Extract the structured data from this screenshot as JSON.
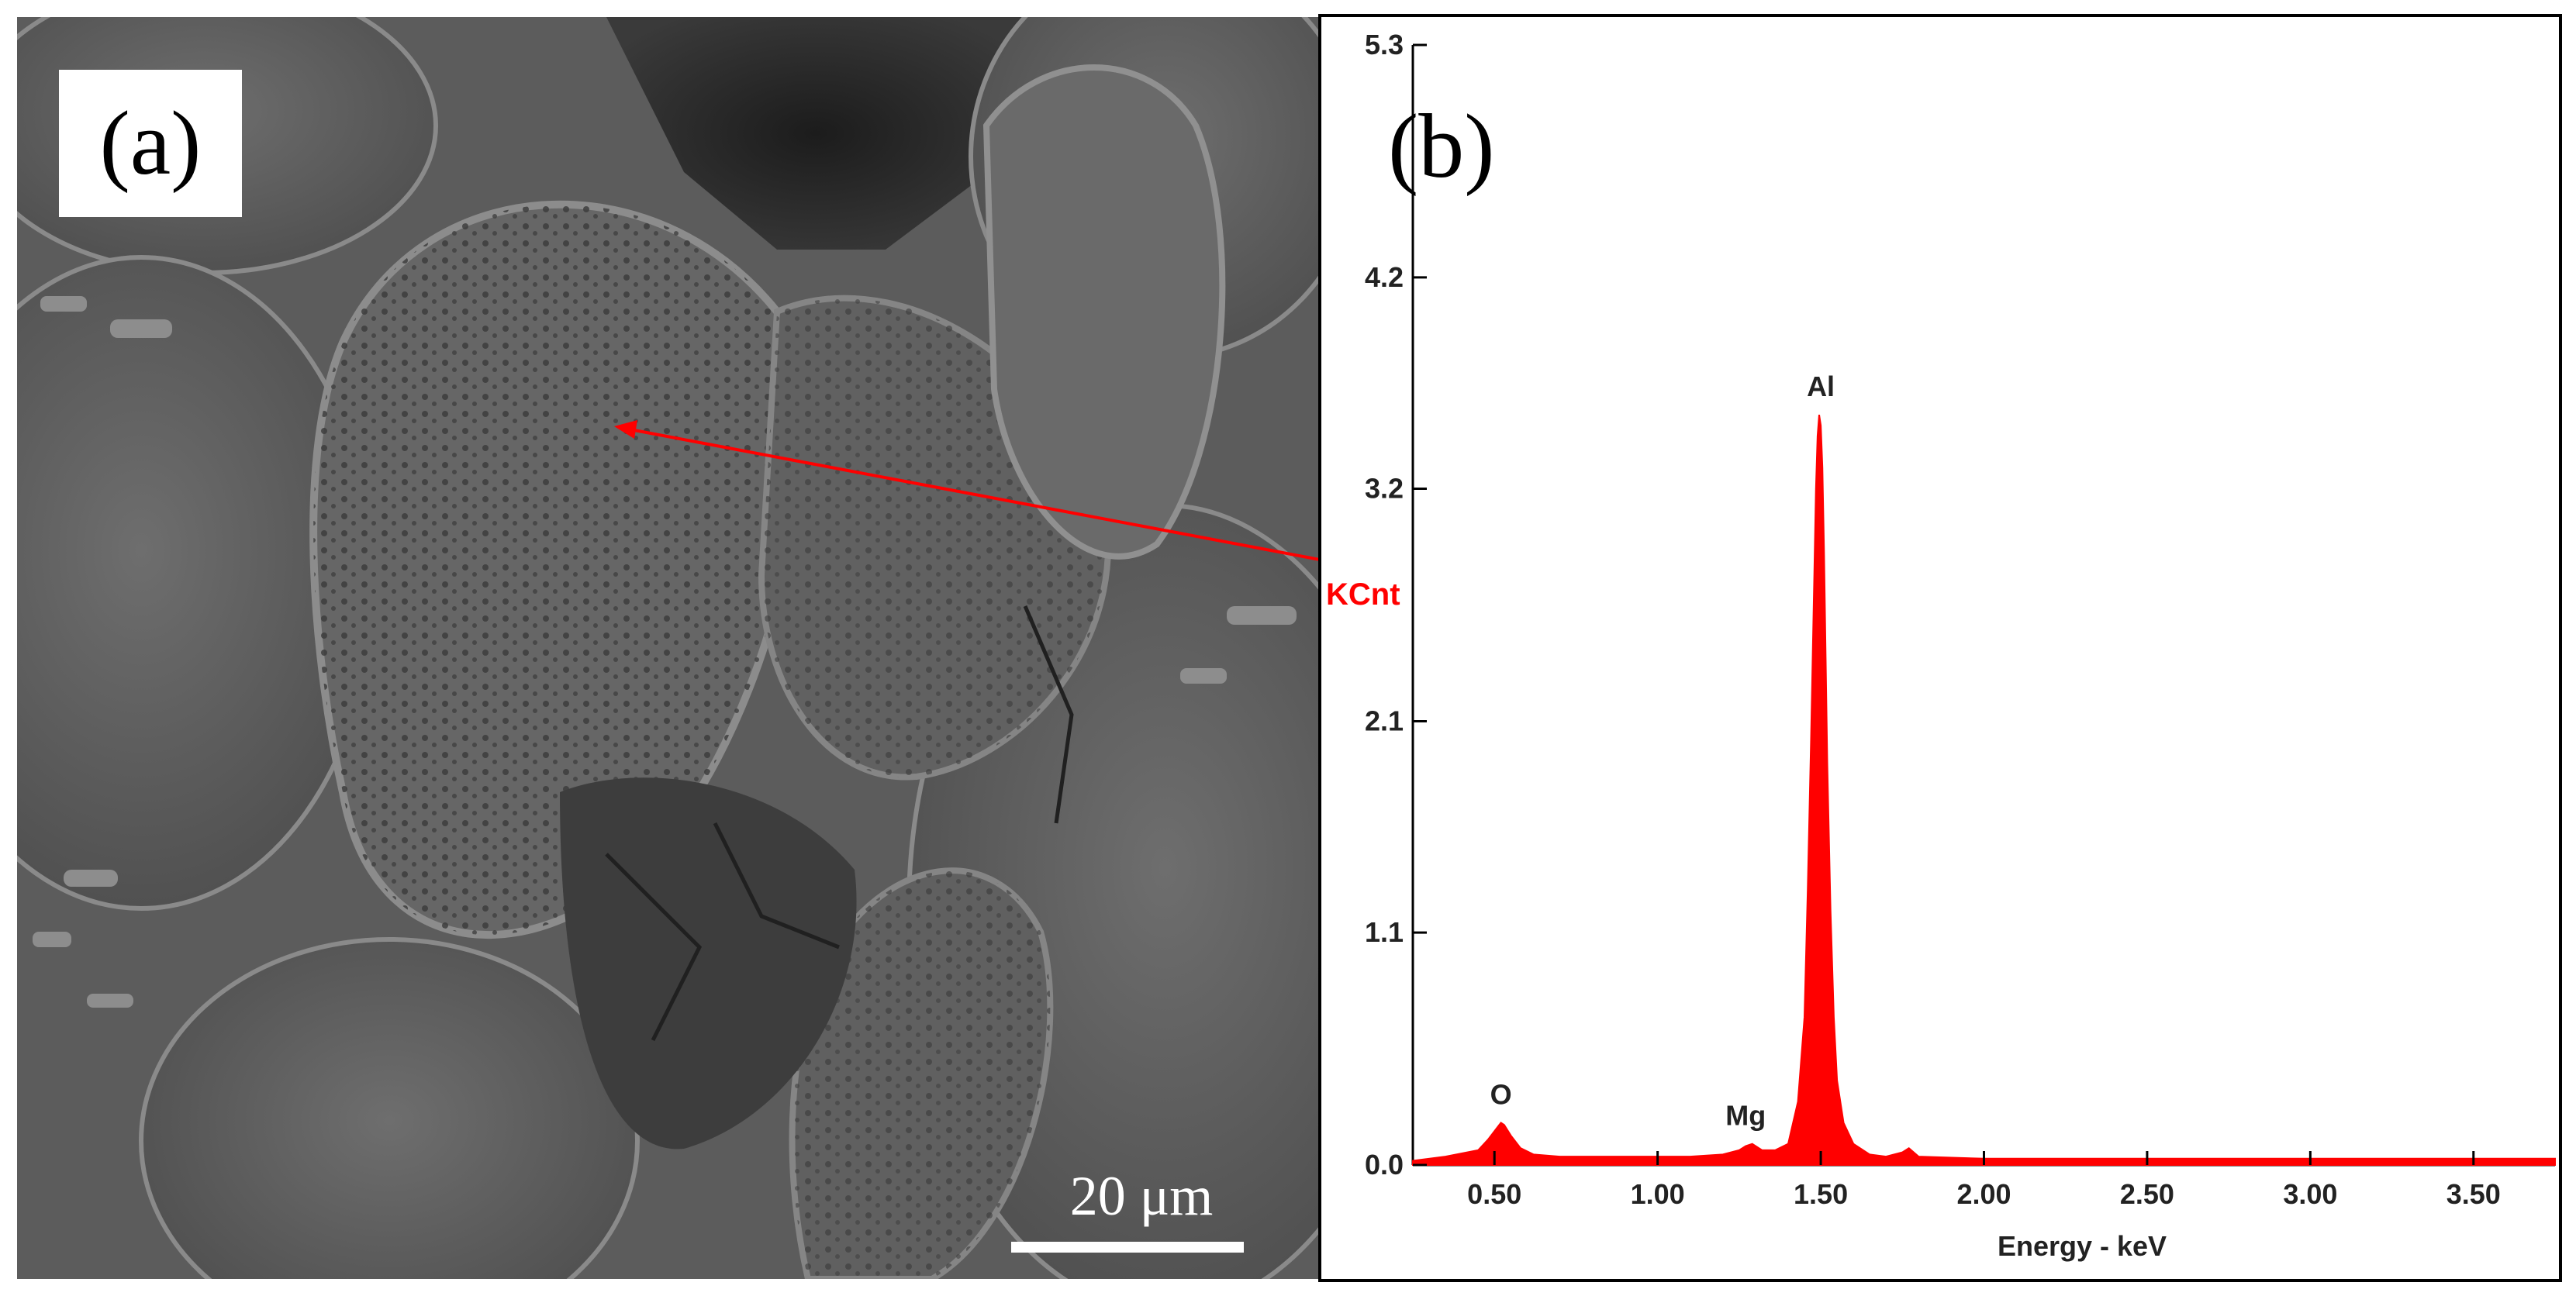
{
  "panel_a": {
    "label": "(a)",
    "scale_bar_text": "20 μm"
  },
  "panel_b": {
    "label": "(b)"
  },
  "chart_data": {
    "type": "area",
    "xlabel": "Energy - keV",
    "ylabel": "KCnt",
    "xlim": [
      0.25,
      3.75
    ],
    "ylim": [
      0.0,
      5.3
    ],
    "x_ticks": [
      0.5,
      1.0,
      1.5,
      2.0,
      2.5,
      3.0,
      3.5
    ],
    "x_tick_labels": [
      "0.50",
      "1.00",
      "1.50",
      "2.00",
      "2.50",
      "3.00",
      "3.50"
    ],
    "y_ticks": [
      0.0,
      1.1,
      2.1,
      3.2,
      4.2,
      5.3
    ],
    "y_tick_labels": [
      "0.0",
      "1.1",
      "2.1",
      "3.2",
      "4.2",
      "5.3"
    ],
    "series": [
      {
        "color": "#ff0000",
        "x": [
          0.25,
          0.35,
          0.45,
          0.48,
          0.51,
          0.52,
          0.53,
          0.55,
          0.58,
          0.62,
          0.7,
          0.8,
          0.9,
          1.0,
          1.1,
          1.2,
          1.25,
          1.27,
          1.29,
          1.32,
          1.36,
          1.4,
          1.43,
          1.45,
          1.46,
          1.47,
          1.48,
          1.485,
          1.49,
          1.495,
          1.5,
          1.505,
          1.51,
          1.515,
          1.52,
          1.53,
          1.54,
          1.55,
          1.57,
          1.6,
          1.65,
          1.7,
          1.75,
          1.77,
          1.8,
          2.0,
          2.5,
          3.0,
          3.5,
          3.75
        ],
        "y": [
          0.02,
          0.04,
          0.07,
          0.12,
          0.18,
          0.2,
          0.19,
          0.14,
          0.08,
          0.05,
          0.04,
          0.04,
          0.04,
          0.04,
          0.04,
          0.05,
          0.07,
          0.09,
          0.1,
          0.07,
          0.07,
          0.1,
          0.3,
          0.7,
          1.3,
          2.0,
          2.8,
          3.2,
          3.45,
          3.55,
          3.5,
          3.3,
          2.9,
          2.4,
          1.9,
          1.2,
          0.7,
          0.4,
          0.2,
          0.1,
          0.05,
          0.04,
          0.06,
          0.08,
          0.04,
          0.03,
          0.03,
          0.03,
          0.03,
          0.03
        ]
      }
    ],
    "annotations": [
      {
        "text": "O",
        "x": 0.52,
        "y": 0.2
      },
      {
        "text": "Mg",
        "x": 1.27,
        "y": 0.1
      },
      {
        "text": "Al",
        "x": 1.5,
        "y": 3.55
      }
    ],
    "grid": false
  }
}
